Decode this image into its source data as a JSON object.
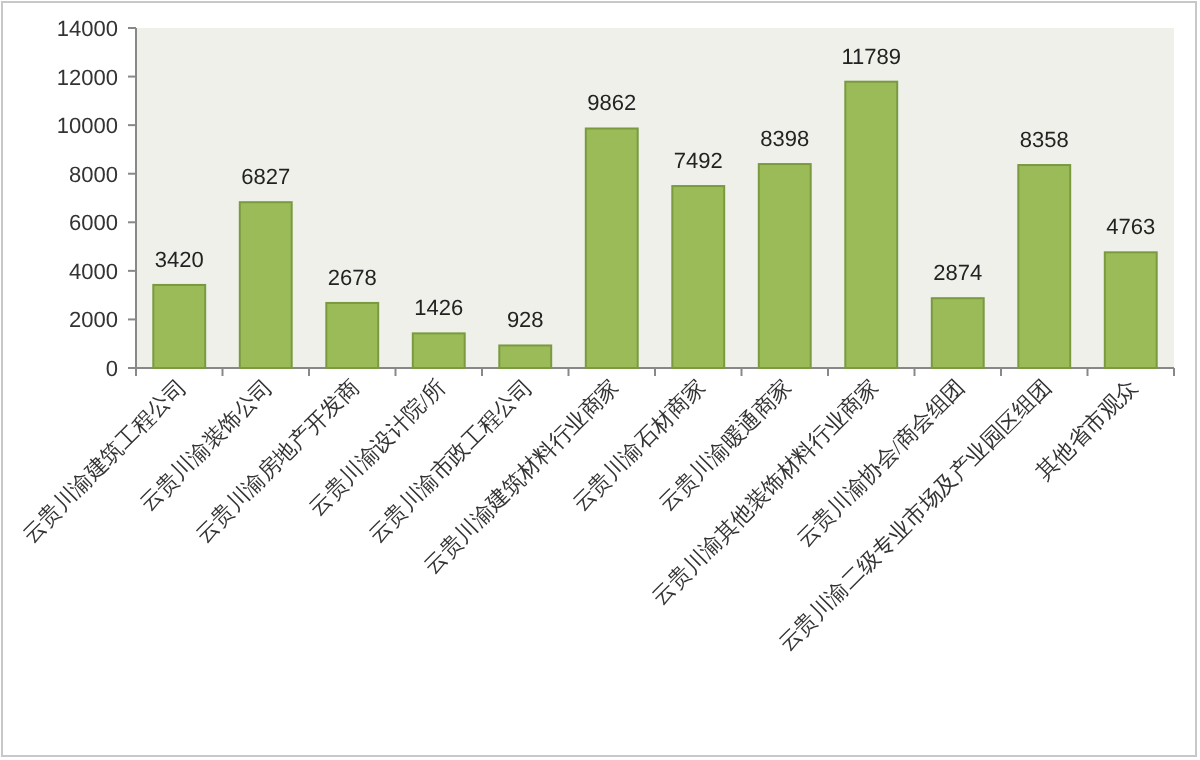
{
  "chart_data": {
    "type": "bar",
    "categories": [
      "云贵川渝建筑工程公司",
      "云贵川渝装饰公司",
      "云贵川渝房地产开发商",
      "云贵川渝设计院/所",
      "云贵川渝市政工程公司",
      "云贵川渝建筑材料行业商家",
      "云贵川渝石材商家",
      "云贵川渝暖通商家",
      "云贵川渝其他装饰材料行业商家",
      "云贵川渝协会/商会组团",
      "云贵川渝二级专业市场及产业园区组团",
      "其他省市观众"
    ],
    "values": [
      3420,
      6827,
      2678,
      1426,
      928,
      9862,
      7492,
      8398,
      11789,
      2874,
      8358,
      4763
    ],
    "color": "#9bbb59",
    "ylim": [
      0,
      14000
    ],
    "yticks": [
      0,
      2000,
      4000,
      6000,
      8000,
      10000,
      12000,
      14000
    ],
    "data_labels": true
  }
}
